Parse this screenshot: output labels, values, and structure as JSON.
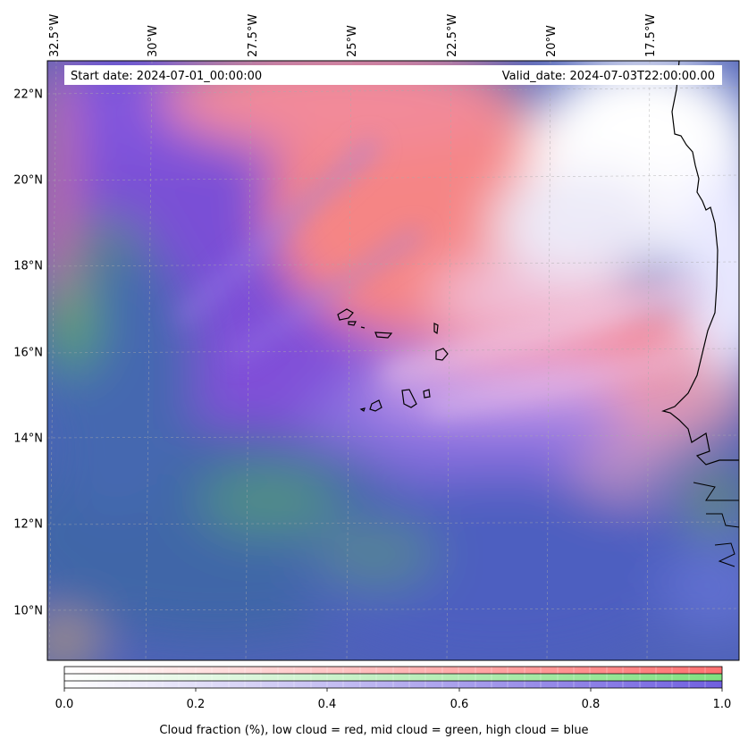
{
  "header": {
    "start_date": "Start date: 2024-07-01_00:00:00",
    "valid_date": "Valid_date: 2024-07-03T22:00:00.00"
  },
  "axes": {
    "lon_labels": [
      "32.5°W",
      "30°W",
      "27.5°W",
      "25°W",
      "22.5°W",
      "20°W",
      "17.5°W"
    ],
    "lat_labels": [
      "22°N",
      "20°N",
      "18°N",
      "16°N",
      "14°N",
      "12°N",
      "10°N"
    ]
  },
  "colorbar": {
    "tick_labels": [
      "0.0",
      "0.2",
      "0.4",
      "0.6",
      "0.8",
      "1.0"
    ],
    "caption": "Cloud fraction (%), low cloud = red, mid cloud = green, high cloud = blue",
    "colors": {
      "low": "#ff7070",
      "mid": "#80e080",
      "high": "#7060e0"
    }
  },
  "map": {
    "region": "Eastern tropical Atlantic with Cape Verde islands and West African coast",
    "colors": {
      "high_cloud": "#7a4fd6",
      "low_cloud": "#f58585",
      "mid_cloud": "#5fb05f",
      "mixed": "#4b6fb0",
      "clear": "#ffffff",
      "coastline": "#000000"
    }
  }
}
